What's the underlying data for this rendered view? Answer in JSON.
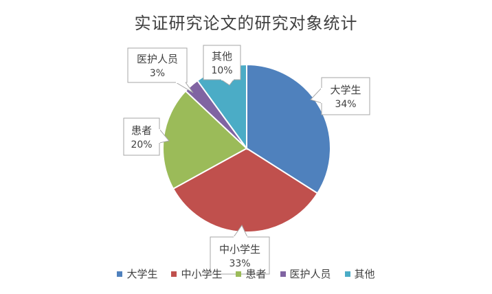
{
  "chart_data": {
    "type": "pie",
    "title": "实证研究论文的研究对象统计",
    "categories": [
      "大学生",
      "中小学生",
      "患者",
      "医护人员",
      "其他"
    ],
    "values": [
      34,
      33,
      20,
      3,
      10
    ],
    "data_labels": [
      "34%",
      "33%",
      "20%",
      "3%",
      "10%"
    ],
    "colors": [
      "#4f81bd",
      "#c0504d",
      "#9bbb59",
      "#8064a2",
      "#4bacc6"
    ],
    "legend": "bottom",
    "start_angle": "12 o'clock",
    "direction": "clockwise"
  }
}
